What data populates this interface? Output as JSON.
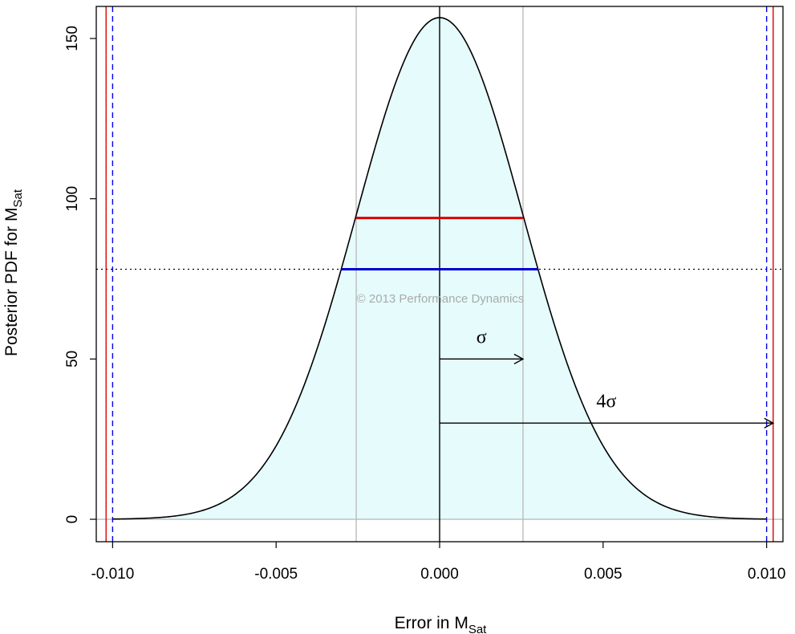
{
  "chart_data": {
    "type": "area",
    "xlabel": "Error in M",
    "xlabel_sub": "Sat",
    "ylabel": "Posterior PDF for M",
    "ylabel_sub": "Sat",
    "xlim": [
      -0.0105,
      0.0105
    ],
    "ylim": [
      -7,
      160
    ],
    "x_ticks": [
      -0.01,
      -0.005,
      0.0,
      0.005,
      0.01
    ],
    "x_tick_labels": [
      "-0.010",
      "-0.005",
      "0.000",
      "0.005",
      "0.010"
    ],
    "y_ticks": [
      0,
      50,
      100,
      150
    ],
    "y_tick_labels": [
      "0",
      "50",
      "100",
      "150"
    ],
    "grid": false,
    "curve": {
      "kind": "normal_pdf",
      "mean": 0.0,
      "sigma": 0.00255,
      "peak": 156.5,
      "x_range": [
        -0.01,
        0.01
      ],
      "fill_color": "#e6fcfc",
      "line_color": "#000000"
    },
    "vertical_lines": [
      {
        "x": -0.0102,
        "color": "#dd0000",
        "style": "solid"
      },
      {
        "x": 0.0102,
        "color": "#dd0000",
        "style": "solid"
      },
      {
        "x": -0.01,
        "color": "#0000ee",
        "style": "dashed"
      },
      {
        "x": 0.01,
        "color": "#0000ee",
        "style": "dashed"
      },
      {
        "x": -0.00255,
        "color": "#bbbbbb",
        "style": "solid"
      },
      {
        "x": 0.00255,
        "color": "#bbbbbb",
        "style": "solid"
      },
      {
        "x": 0.0,
        "color": "#000000",
        "style": "solid"
      }
    ],
    "horizontal_lines": [
      {
        "y": 0,
        "color": "#bbbbbb",
        "style": "solid"
      },
      {
        "y": 78,
        "color": "#000000",
        "style": "dotted"
      }
    ],
    "segments": [
      {
        "x0": -0.00255,
        "x1": 0.00255,
        "y": 94,
        "color": "#dd0000"
      },
      {
        "x0": -0.003,
        "x1": 0.003,
        "y": 78,
        "color": "#0000cc"
      }
    ],
    "arrows": [
      {
        "x0": 0.0,
        "x1": 0.00255,
        "y": 50,
        "label": "σ",
        "label_x": 0.00128,
        "label_y": 55
      },
      {
        "x0": 0.0,
        "x1": 0.0102,
        "y": 30,
        "label": "4σ",
        "label_x": 0.0051,
        "label_y": 35
      }
    ],
    "watermark": "© 2013 Performance Dynamics"
  }
}
